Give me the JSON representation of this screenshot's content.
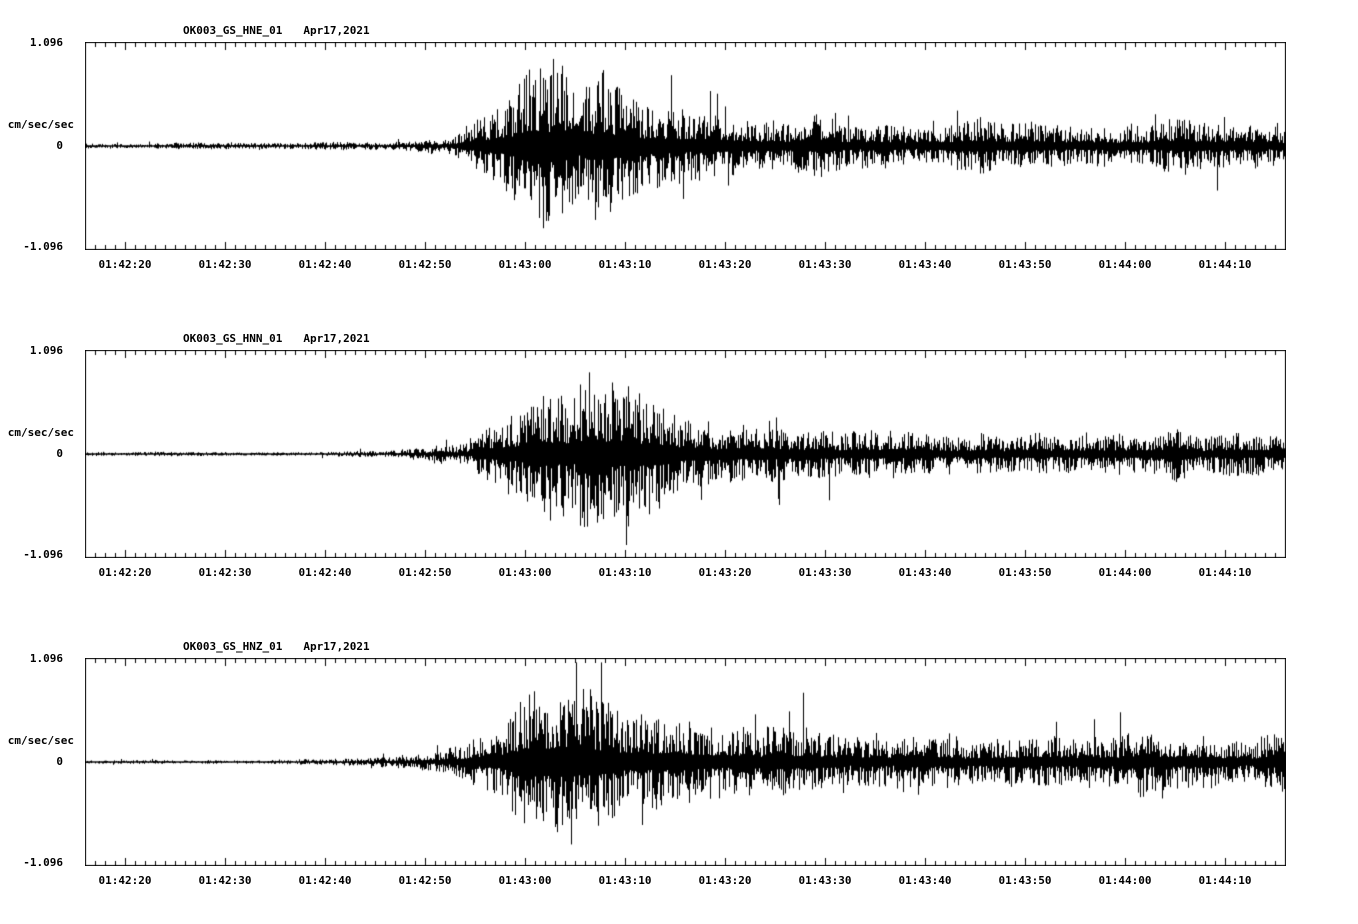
{
  "page": {
    "background": "#ffffff",
    "trace_color": "#000000"
  },
  "chart_data": [
    {
      "type": "line",
      "chart_kind": "seismogram",
      "title": "OK003_GS_HNE_01",
      "date": "Apr17,2021",
      "ylabel": "cm/sec/sec",
      "y_ticks": [
        "1.096",
        "0",
        "-1.096"
      ],
      "ylim": [
        -1.096,
        1.096
      ],
      "x_range_s": [
        0,
        120
      ],
      "x_tick_labels": [
        "01:42:20",
        "01:42:30",
        "01:42:40",
        "01:42:50",
        "01:43:00",
        "01:43:10",
        "01:43:20",
        "01:43:30",
        "01:43:40",
        "01:43:50",
        "01:44:00",
        "01:44:10"
      ],
      "x_tick_offsets_s": [
        4,
        14,
        24,
        34,
        44,
        54,
        64,
        74,
        84,
        94,
        104,
        114
      ],
      "envelope": [
        [
          0,
          0.03
        ],
        [
          20,
          0.032
        ],
        [
          28,
          0.04
        ],
        [
          33,
          0.06
        ],
        [
          36,
          0.11
        ],
        [
          39,
          0.25
        ],
        [
          42,
          0.45
        ],
        [
          45,
          0.7
        ],
        [
          47,
          0.78
        ],
        [
          50,
          0.7
        ],
        [
          53,
          0.6
        ],
        [
          56,
          0.5
        ],
        [
          60,
          0.38
        ],
        [
          66,
          0.3
        ],
        [
          72,
          0.28
        ],
        [
          80,
          0.24
        ],
        [
          88,
          0.22
        ],
        [
          96,
          0.21
        ],
        [
          104,
          0.2
        ],
        [
          108,
          0.29
        ],
        [
          111,
          0.21
        ],
        [
          116,
          0.22
        ],
        [
          120,
          0.23
        ]
      ]
    },
    {
      "type": "line",
      "chart_kind": "seismogram",
      "title": "OK003_GS_HNN_01",
      "date": "Apr17,2021",
      "ylabel": "cm/sec/sec",
      "y_ticks": [
        "1.096",
        "0",
        "-1.096"
      ],
      "ylim": [
        -1.096,
        1.096
      ],
      "x_range_s": [
        0,
        120
      ],
      "x_tick_labels": [
        "01:42:20",
        "01:42:30",
        "01:42:40",
        "01:42:50",
        "01:43:00",
        "01:43:10",
        "01:43:20",
        "01:43:30",
        "01:43:40",
        "01:43:50",
        "01:44:00",
        "01:44:10"
      ],
      "x_tick_offsets_s": [
        4,
        14,
        24,
        34,
        44,
        54,
        64,
        74,
        84,
        94,
        104,
        114
      ],
      "envelope": [
        [
          0,
          0.018
        ],
        [
          24,
          0.02
        ],
        [
          30,
          0.03
        ],
        [
          34,
          0.06
        ],
        [
          37,
          0.12
        ],
        [
          40,
          0.22
        ],
        [
          43,
          0.4
        ],
        [
          46,
          0.65
        ],
        [
          49,
          0.8
        ],
        [
          51,
          0.82
        ],
        [
          54,
          0.65
        ],
        [
          57,
          0.5
        ],
        [
          60,
          0.4
        ],
        [
          65,
          0.32
        ],
        [
          70,
          0.28
        ],
        [
          76,
          0.23
        ],
        [
          84,
          0.19
        ],
        [
          92,
          0.18
        ],
        [
          100,
          0.18
        ],
        [
          106,
          0.19
        ],
        [
          109,
          0.26
        ],
        [
          112,
          0.19
        ],
        [
          120,
          0.21
        ]
      ]
    },
    {
      "type": "line",
      "chart_kind": "seismogram",
      "title": "OK003_GS_HNZ_01",
      "date": "Apr17,2021",
      "ylabel": "cm/sec/sec",
      "y_ticks": [
        "1.096",
        "0",
        "-1.096"
      ],
      "ylim": [
        -1.096,
        1.096
      ],
      "x_range_s": [
        0,
        120
      ],
      "x_tick_labels": [
        "01:42:20",
        "01:42:30",
        "01:42:40",
        "01:42:50",
        "01:43:00",
        "01:43:10",
        "01:43:20",
        "01:43:30",
        "01:43:40",
        "01:43:50",
        "01:44:00",
        "01:44:10"
      ],
      "x_tick_offsets_s": [
        4,
        14,
        24,
        34,
        44,
        54,
        64,
        74,
        84,
        94,
        104,
        114
      ],
      "envelope": [
        [
          0,
          0.018
        ],
        [
          16,
          0.022
        ],
        [
          24,
          0.035
        ],
        [
          30,
          0.055
        ],
        [
          34,
          0.09
        ],
        [
          38,
          0.18
        ],
        [
          41,
          0.35
        ],
        [
          44,
          0.65
        ],
        [
          46,
          0.85
        ],
        [
          48,
          0.8
        ],
        [
          51,
          0.68
        ],
        [
          54,
          0.58
        ],
        [
          58,
          0.48
        ],
        [
          63,
          0.4
        ],
        [
          70,
          0.33
        ],
        [
          78,
          0.3
        ],
        [
          86,
          0.28
        ],
        [
          94,
          0.26
        ],
        [
          102,
          0.26
        ],
        [
          108,
          0.3
        ],
        [
          114,
          0.26
        ],
        [
          120,
          0.28
        ]
      ]
    }
  ]
}
